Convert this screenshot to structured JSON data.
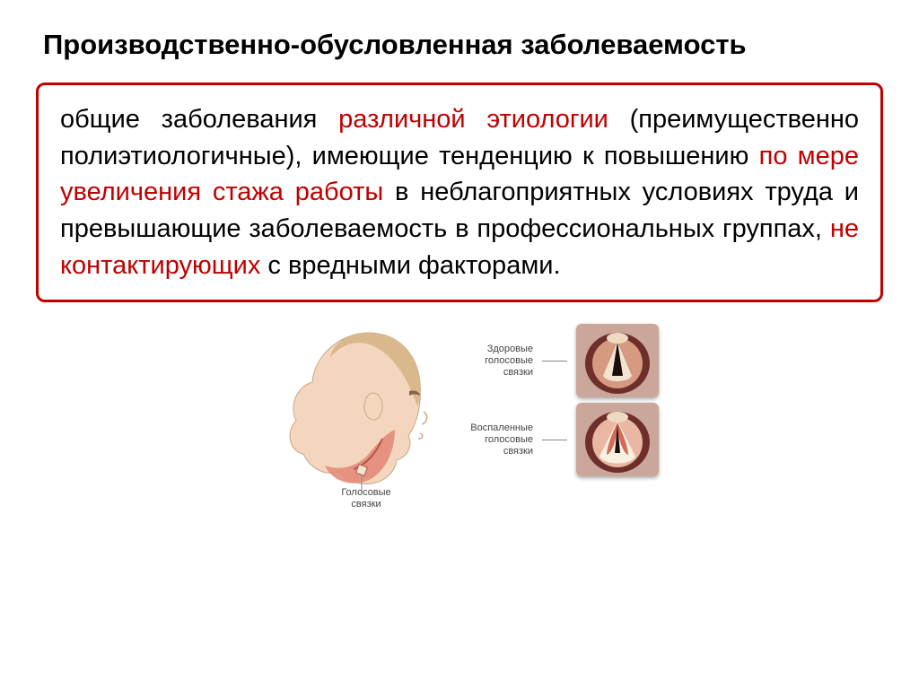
{
  "title": "Производственно-обусловленная заболеваемость",
  "box": {
    "border_color": "#c00000",
    "segments": [
      {
        "text": "общие заболевания ",
        "color": "#000000"
      },
      {
        "text": "различной этиологии",
        "color": "#c00000"
      },
      {
        "text": " (преимущественно полиэтиологичные), имеющие тенденцию к повышению ",
        "color": "#000000"
      },
      {
        "text": "по мере увеличения стажа работы",
        "color": "#c00000"
      },
      {
        "text": " в неблагоприятных условиях труда и превышающие заболеваемость в профессиональных группах, ",
        "color": "#000000"
      },
      {
        "text": "не контактирующих",
        "color": "#c00000"
      },
      {
        "text": " с вредными факторами.",
        "color": "#000000"
      }
    ]
  },
  "figure": {
    "head": {
      "skin_color": "#f3d6bd",
      "throat_color": "#e58b7a",
      "hair_color": "#d9b98c",
      "cord_label": "Голосовые\nсвязки"
    },
    "healthy": {
      "label": "Здоровые\nголосовые\nсвязки",
      "bg_outer": "#caa79a",
      "bg_inner": "#6e2f2a",
      "tissue": "#d69a81",
      "cord_color": "#f1e5d2",
      "gap_color": "#1a0e0c"
    },
    "inflamed": {
      "label": "Воспаленные\nголосовые\nсвязки",
      "bg_outer": "#caa79a",
      "bg_inner": "#6e2f2a",
      "tissue": "#e9b7a2",
      "cord_color": "#f9f1e0",
      "gap_color": "#1a0e0c",
      "inflamed_color": "#d46a5a"
    }
  }
}
